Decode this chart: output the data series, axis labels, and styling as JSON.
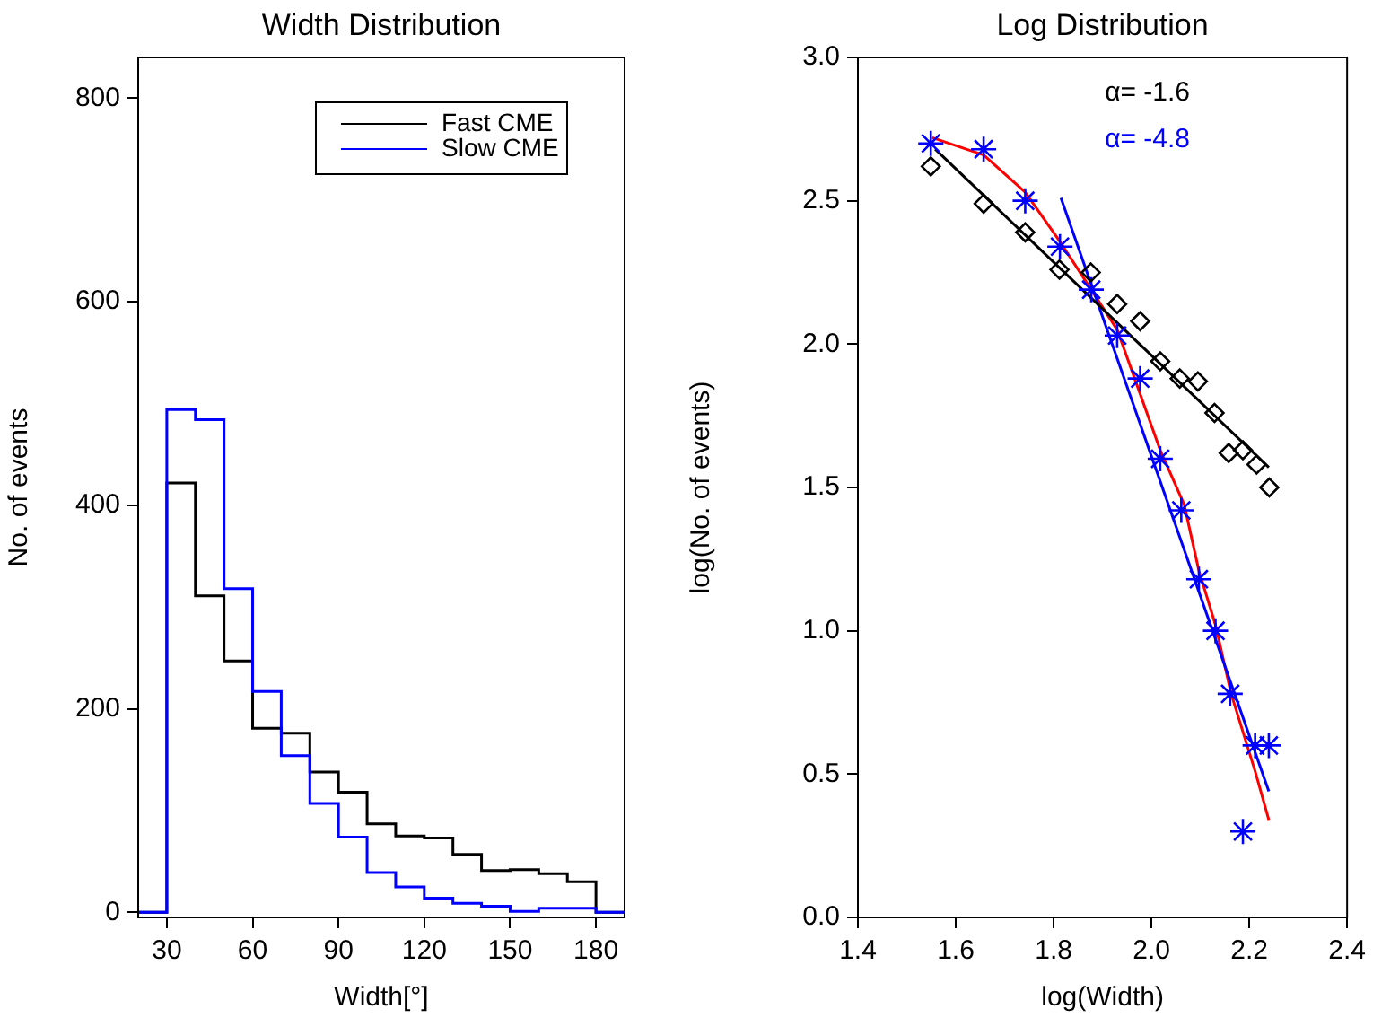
{
  "chart_data": [
    {
      "type": "histogram",
      "title": "Width Distribution",
      "xlabel": "Width[°]",
      "ylabel": "No. of events",
      "bins": [
        20,
        30,
        40,
        50,
        60,
        70,
        80,
        90,
        100,
        110,
        120,
        130,
        140,
        150,
        160,
        170,
        180,
        190
      ],
      "series": [
        {
          "name": "Fast CME",
          "color": "#000000",
          "values": [
            0,
            422,
            311,
            247,
            181,
            176,
            138,
            118,
            87,
            75,
            73,
            57,
            41,
            42,
            38,
            30,
            0
          ]
        },
        {
          "name": "Slow CME",
          "color": "#0000ff",
          "values": [
            0,
            494,
            484,
            318,
            217,
            154,
            107,
            74,
            39,
            25,
            14,
            9,
            6,
            1,
            4,
            4,
            0
          ]
        }
      ],
      "xlim": [
        20,
        190
      ],
      "xticks": [
        30,
        60,
        90,
        120,
        150,
        180
      ],
      "ylim": [
        -5,
        840
      ],
      "yticks": [
        0,
        200,
        400,
        600,
        800
      ],
      "legend": "top right"
    },
    {
      "type": "scatter",
      "title": "Log Distribution",
      "xlabel": "log(Width)",
      "ylabel": "log(No. of events)",
      "series": [
        {
          "type": "scatter",
          "marker": "diamond",
          "color": "#000000",
          "x": [
            1.549,
            1.657,
            1.742,
            1.812,
            1.876,
            1.93,
            1.977,
            2.018,
            2.058,
            2.095,
            2.129,
            2.158,
            2.187,
            2.215,
            2.241
          ],
          "values": [
            2.62,
            2.49,
            2.39,
            2.26,
            2.25,
            2.14,
            2.08,
            1.94,
            1.88,
            1.87,
            1.76,
            1.62,
            1.63,
            1.58,
            1.5
          ]
        },
        {
          "type": "scatter",
          "marker": "cross",
          "color": "#0000ff",
          "x": [
            1.549,
            1.657,
            1.742,
            1.813,
            1.877,
            1.93,
            1.977,
            2.018,
            2.061,
            2.097,
            2.131,
            2.161,
            2.187,
            2.212,
            2.24
          ],
          "values": [
            2.7,
            2.68,
            2.5,
            2.34,
            2.19,
            2.03,
            1.88,
            1.6,
            1.42,
            1.18,
            1.0,
            0.78,
            0.3,
            0.6,
            0.6
          ]
        },
        {
          "type": "line",
          "marker": "none",
          "name": "α= -1.6",
          "color": "#000000",
          "x": [
            1.558,
            2.24
          ],
          "values": [
            2.68,
            1.57
          ]
        },
        {
          "type": "line",
          "marker": "none",
          "name": "α= -4.8",
          "color": "#0000ff",
          "x": [
            1.815,
            2.24
          ],
          "values": [
            2.51,
            0.44
          ]
        },
        {
          "type": "line",
          "marker": "none",
          "color": "#ff0000",
          "x": [
            1.552,
            1.657,
            1.742,
            1.812,
            1.877,
            1.93,
            2.018,
            2.067,
            2.097,
            2.131,
            2.163,
            2.212,
            2.24
          ],
          "values": [
            2.72,
            2.66,
            2.53,
            2.36,
            2.19,
            2.05,
            1.63,
            1.44,
            1.21,
            1.02,
            0.78,
            0.51,
            0.34
          ]
        }
      ],
      "xlim": [
        1.4,
        2.4
      ],
      "xticks": [
        1.4,
        1.6,
        1.8,
        {
          "value": 2,
          "label": "2.0"
        },
        2.2,
        2.4
      ],
      "ylim": [
        0,
        3
      ],
      "yticks": [
        {
          "value": 0,
          "label": "0.0"
        },
        0.5,
        {
          "value": 1,
          "label": "1.0"
        },
        1.5,
        {
          "value": 2,
          "label": "2.0"
        },
        2.5,
        {
          "value": 3,
          "label": "3.0"
        }
      ],
      "legend": "top right"
    }
  ]
}
